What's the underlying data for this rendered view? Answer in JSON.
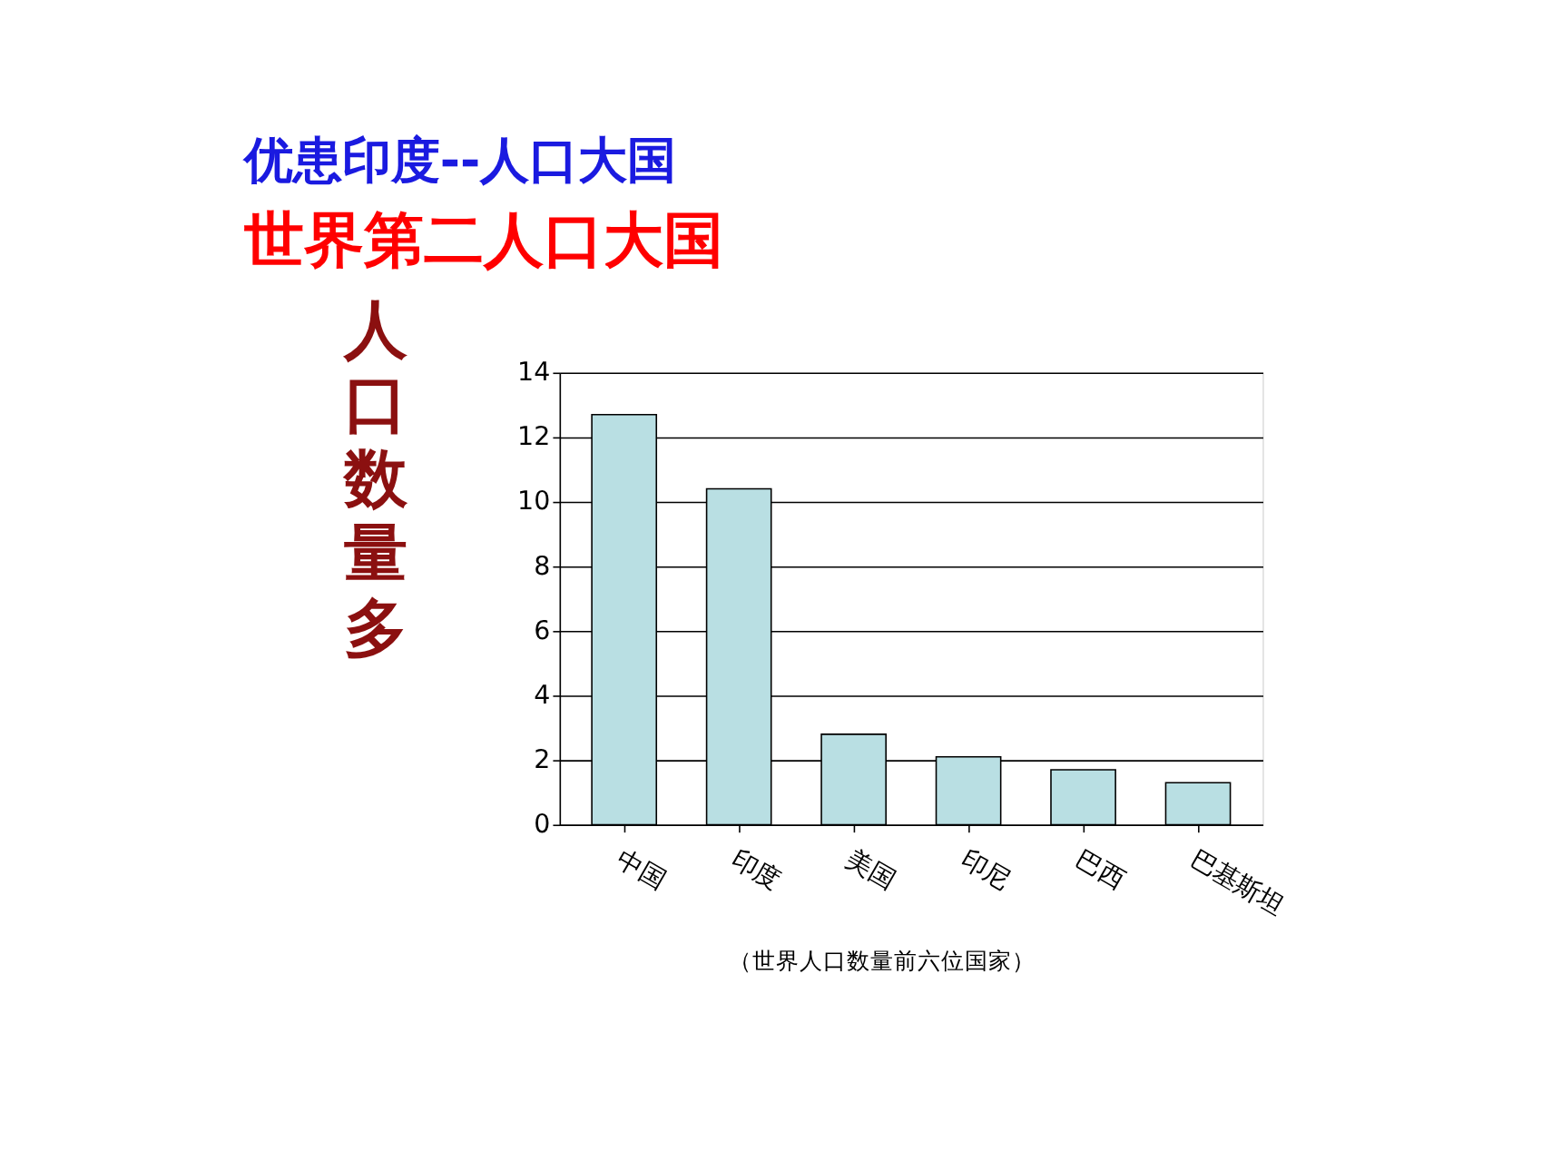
{
  "chart_data": {
    "type": "bar",
    "title": "优患印度--人口大国",
    "subtitle": "世界第二人口大国",
    "ylabel": "人口数量多",
    "categories": [
      "中国",
      "印度",
      "美国",
      "印尼",
      "巴西",
      "巴基斯坦"
    ],
    "values": [
      12.7,
      10.4,
      2.8,
      2.1,
      1.7,
      1.3
    ],
    "color": "#b9dfe3",
    "ylim": [
      0,
      14
    ],
    "yticks": [
      0,
      2,
      4,
      6,
      8,
      10,
      12,
      14
    ],
    "grid": "y",
    "annotations": [
      "（世界人口数量前六位国家）"
    ]
  }
}
